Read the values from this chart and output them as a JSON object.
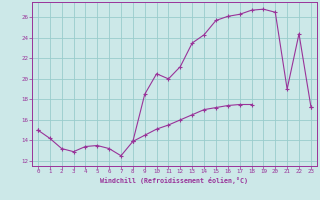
{
  "xlabel": "Windchill (Refroidissement éolien,°C)",
  "background_color": "#cce8e8",
  "grid_color": "#99cccc",
  "line_color": "#993399",
  "xlim": [
    -0.5,
    23.5
  ],
  "ylim": [
    11.5,
    27.5
  ],
  "xticks": [
    0,
    1,
    2,
    3,
    4,
    5,
    6,
    7,
    8,
    9,
    10,
    11,
    12,
    13,
    14,
    15,
    16,
    17,
    18,
    19,
    20,
    21,
    22,
    23
  ],
  "yticks": [
    12,
    14,
    16,
    18,
    20,
    22,
    24,
    26
  ],
  "hours": [
    0,
    1,
    2,
    3,
    4,
    5,
    6,
    7,
    8,
    9,
    10,
    11,
    12,
    13,
    14,
    15,
    16,
    17,
    18,
    19,
    20,
    21,
    22,
    23
  ],
  "line1": [
    15.0,
    14.2,
    13.2,
    12.9,
    13.4,
    13.5,
    13.2,
    12.5,
    13.9,
    null,
    null,
    null,
    null,
    null,
    null,
    null,
    null,
    null,
    null,
    null,
    null,
    null,
    null,
    null
  ],
  "line2": [
    null,
    null,
    null,
    null,
    null,
    null,
    null,
    null,
    13.9,
    18.5,
    20.5,
    20.0,
    21.2,
    23.5,
    24.3,
    25.7,
    26.1,
    26.3,
    26.7,
    26.8,
    26.5,
    19.0,
    24.4,
    17.3
  ],
  "line3": [
    15.0,
    null,
    null,
    null,
    null,
    null,
    null,
    null,
    13.9,
    14.5,
    15.1,
    15.5,
    16.0,
    16.5,
    17.0,
    17.2,
    17.4,
    17.5,
    17.5,
    null,
    null,
    null,
    null,
    17.3
  ]
}
